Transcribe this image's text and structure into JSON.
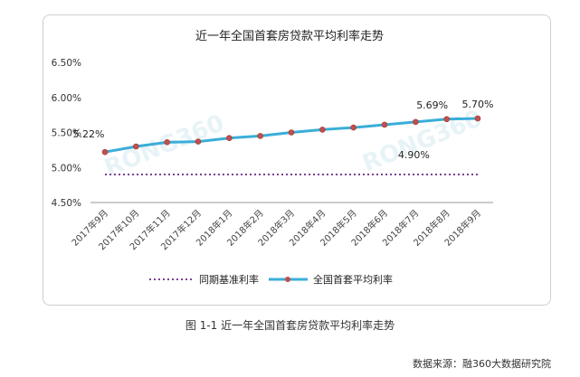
{
  "chart_data": {
    "type": "line",
    "title": "近一年全国首套房贷款平均利率走势",
    "categories": [
      "2017年9月",
      "2017年10月",
      "2017年11月",
      "2017年12月",
      "2018年1月",
      "2018年2月",
      "2018年3月",
      "2018年4月",
      "2018年5月",
      "2018年6月",
      "2018年7月",
      "2018年8月",
      "2018年9月"
    ],
    "series": [
      {
        "name": "同期基准利率",
        "style": "dotted",
        "color": "#7b3f98",
        "values": [
          4.9,
          4.9,
          4.9,
          4.9,
          4.9,
          4.9,
          4.9,
          4.9,
          4.9,
          4.9,
          4.9,
          4.9,
          4.9
        ]
      },
      {
        "name": "全国首套平均利率",
        "style": "solid-marker",
        "color": "#3aaed8",
        "marker_color": "#c0504d",
        "values": [
          5.22,
          5.3,
          5.36,
          5.37,
          5.42,
          5.45,
          5.5,
          5.54,
          5.57,
          5.61,
          5.65,
          5.69,
          5.7
        ]
      }
    ],
    "yticks": [
      "6.50%",
      "6.00%",
      "5.50%",
      "5.00%",
      "4.50%"
    ],
    "ylim": [
      4.5,
      6.5
    ],
    "data_labels": [
      {
        "text": "5.22%",
        "series": 1,
        "index": 0
      },
      {
        "text": "5.69%",
        "series": 1,
        "index": 11
      },
      {
        "text": "5.70%",
        "series": 1,
        "index": 12
      },
      {
        "text": "4.90%",
        "series": 0,
        "index": 10
      }
    ],
    "legend_position": "bottom",
    "grid": false,
    "watermark": "RONG360"
  },
  "caption": "图 1-1  近一年全国首套房贷款平均利率走势",
  "source_text": "数据来源：融360大数据研究院"
}
